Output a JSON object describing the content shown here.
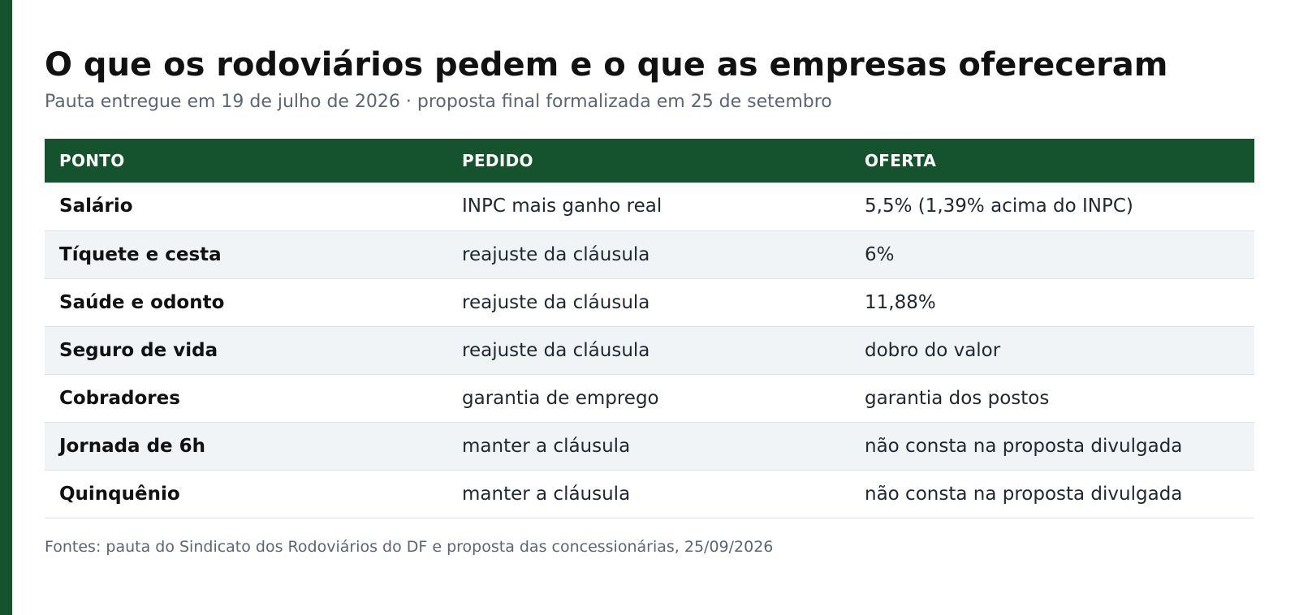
{
  "title": "O que os rodoviários pedem e o que as empresas ofereceram",
  "subtitle": "Pauta entregue em 19 de julho de 2026 · proposta final formalizada em 25 de setembro",
  "colors": {
    "accent": "#14532d",
    "row_alt": "#f0f4f7"
  },
  "table": {
    "headers": [
      "PONTO",
      "PEDIDO",
      "OFERTA"
    ],
    "rows": [
      {
        "ponto": "Salário",
        "pedido": "INPC mais ganho real",
        "oferta": "5,5% (1,39% acima do INPC)"
      },
      {
        "ponto": "Tíquete e cesta",
        "pedido": "reajuste da cláusula",
        "oferta": "6%"
      },
      {
        "ponto": "Saúde e odonto",
        "pedido": "reajuste da cláusula",
        "oferta": "11,88%"
      },
      {
        "ponto": "Seguro de vida",
        "pedido": "reajuste da cláusula",
        "oferta": "dobro do valor"
      },
      {
        "ponto": "Cobradores",
        "pedido": "garantia de emprego",
        "oferta": "garantia dos postos"
      },
      {
        "ponto": "Jornada de 6h",
        "pedido": "manter a cláusula",
        "oferta": "não consta na proposta divulgada"
      },
      {
        "ponto": "Quinquênio",
        "pedido": "manter a cláusula",
        "oferta": "não consta na proposta divulgada"
      }
    ]
  },
  "source": "Fontes: pauta do Sindicato dos Rodoviários do DF e proposta das concessionárias, 25/09/2026"
}
